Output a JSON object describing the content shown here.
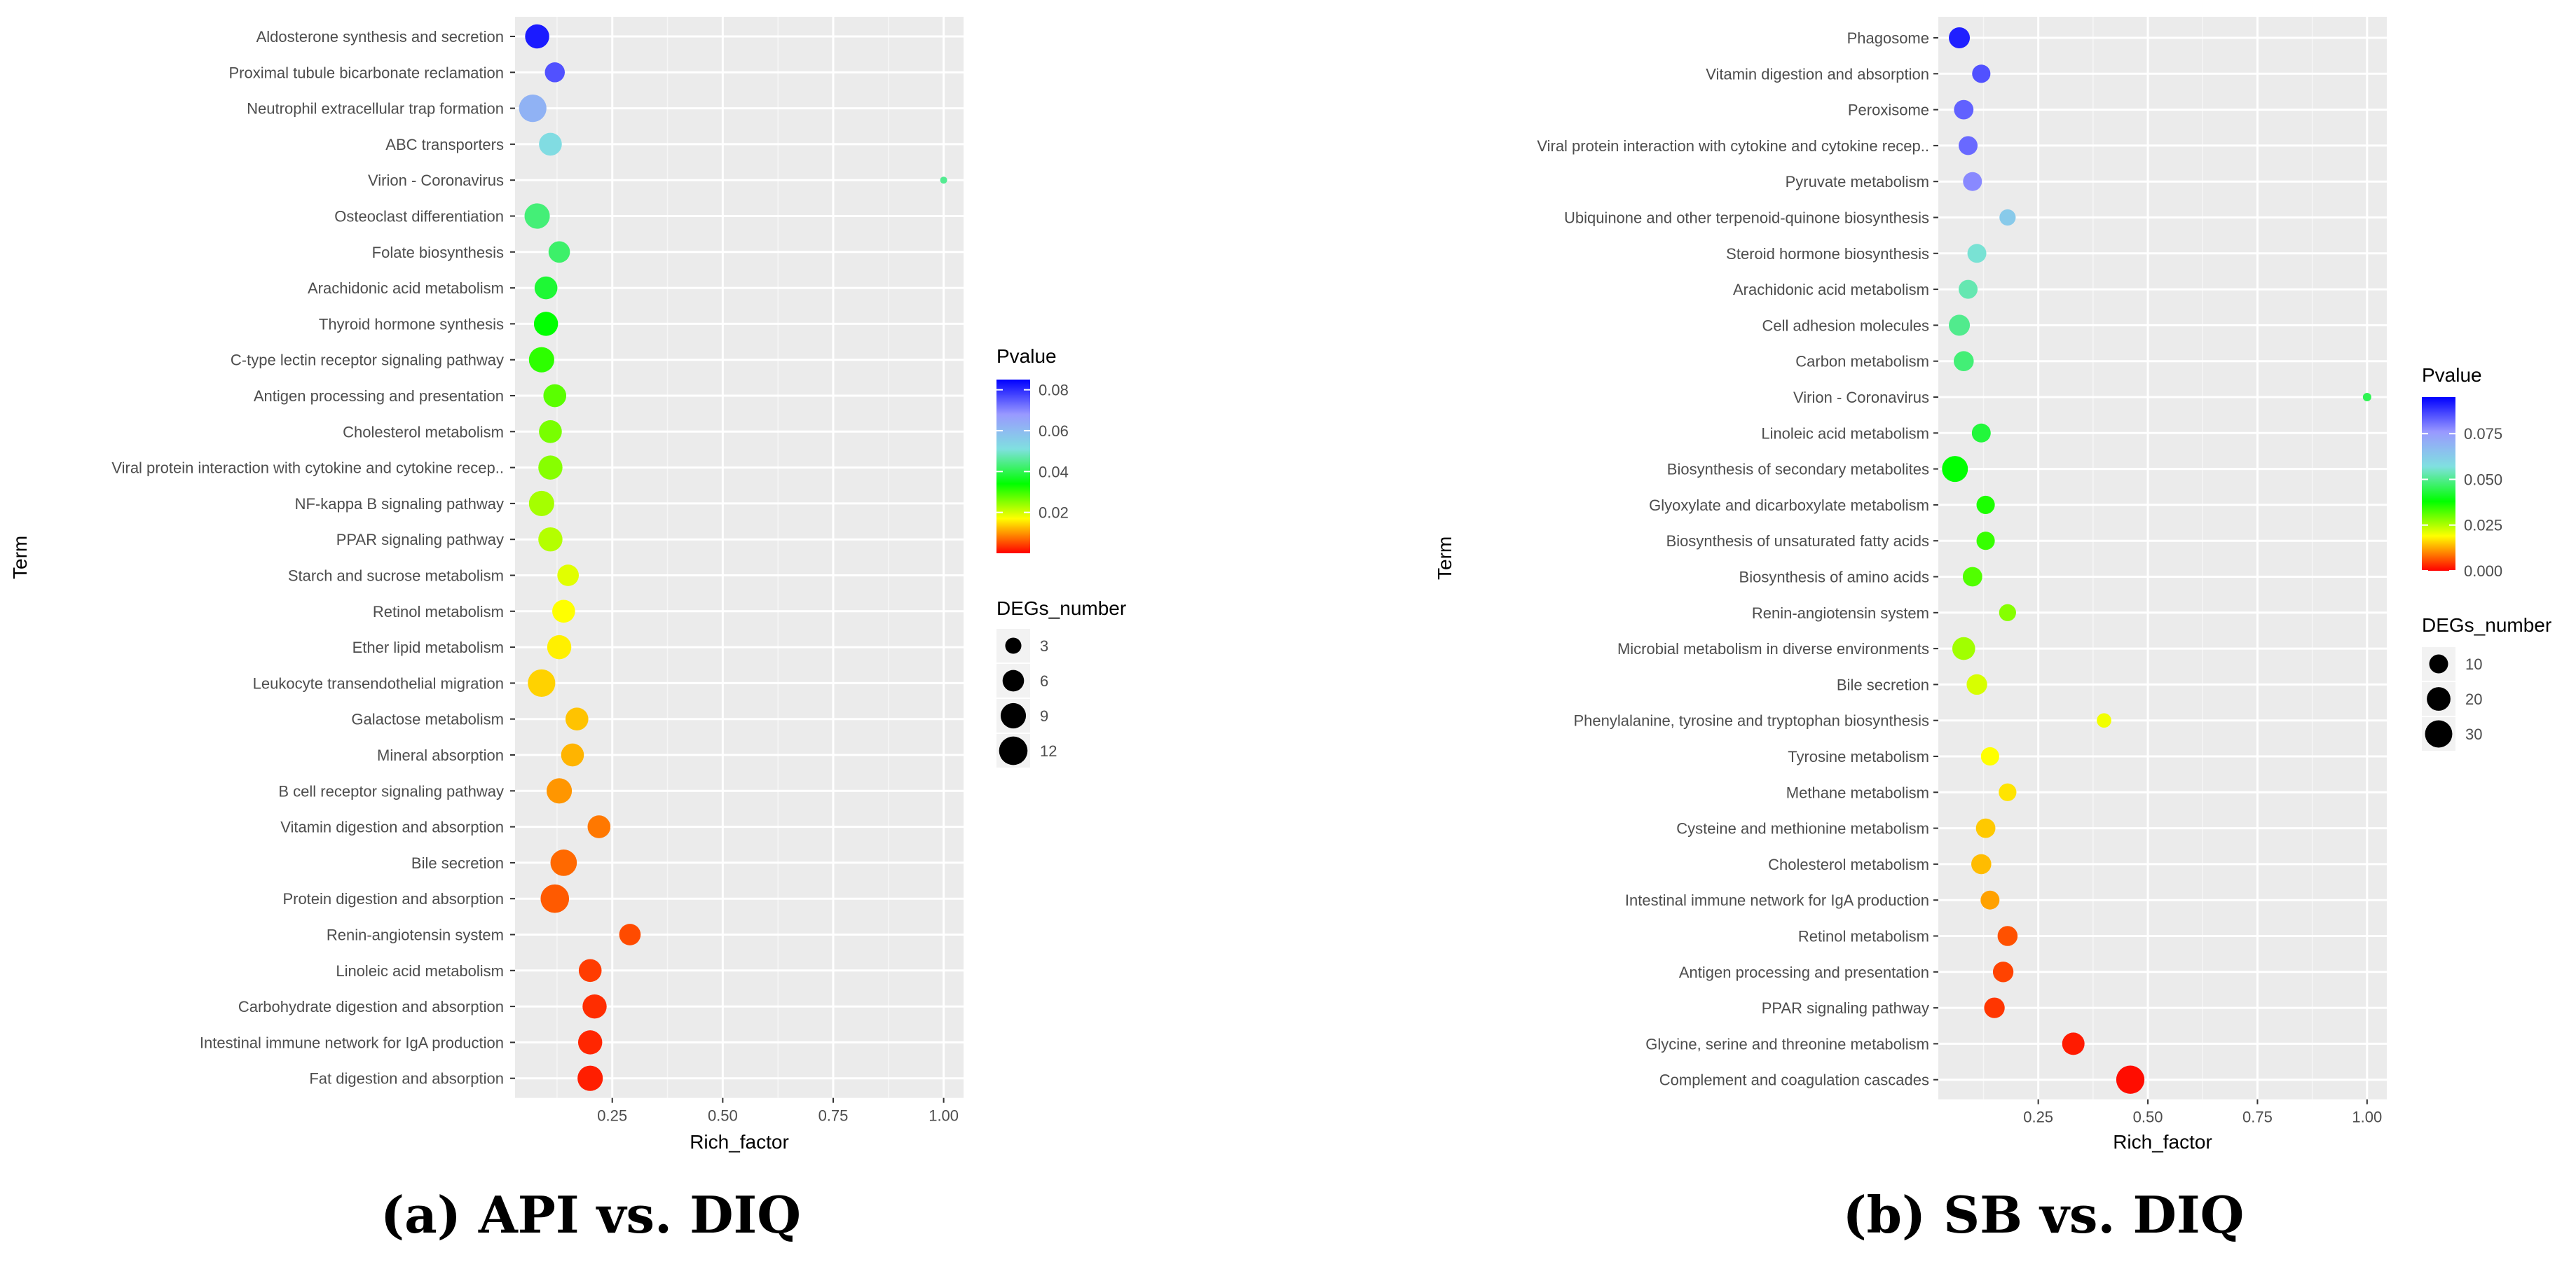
{
  "chart_data": [
    {
      "type": "scatter",
      "caption": "(a) API vs. DIQ",
      "xlabel": "Rich_factor",
      "ylabel": "Term",
      "xlim": [
        0.03,
        1.045
      ],
      "xticks": [
        0.25,
        0.5,
        0.75,
        1.0
      ],
      "xtick_labels": [
        "0.25",
        "0.50",
        "0.75",
        "1.00"
      ],
      "color_legend": {
        "title": "Pvalue",
        "range": [
          0.0,
          0.085
        ],
        "ticks": [
          0.08,
          0.06,
          0.04,
          0.02
        ],
        "tick_labels": [
          "0.08",
          "0.06",
          "0.04",
          "0.02"
        ]
      },
      "size_legend": {
        "title": "DEGs_number",
        "values": [
          3,
          6,
          9,
          12
        ],
        "labels": [
          "3",
          "6",
          "9",
          "12"
        ],
        "range": [
          1,
          13
        ]
      },
      "points": [
        {
          "term": "Aldosterone synthesis and secretion",
          "x": 0.08,
          "p": 0.082,
          "n": 8
        },
        {
          "term": "Proximal tubule bicarbonate reclamation",
          "x": 0.12,
          "p": 0.076,
          "n": 5
        },
        {
          "term": "Neutrophil extracellular trap formation",
          "x": 0.07,
          "p": 0.062,
          "n": 11
        },
        {
          "term": "ABC transporters",
          "x": 0.11,
          "p": 0.052,
          "n": 7
        },
        {
          "term": "Virion - Coronavirus",
          "x": 1.0,
          "p": 0.045,
          "n": 1
        },
        {
          "term": "Osteoclast differentiation",
          "x": 0.08,
          "p": 0.043,
          "n": 9
        },
        {
          "term": "Folate biosynthesis",
          "x": 0.13,
          "p": 0.042,
          "n": 6
        },
        {
          "term": "Arachidonic acid metabolism",
          "x": 0.1,
          "p": 0.038,
          "n": 7
        },
        {
          "term": "Thyroid hormone synthesis",
          "x": 0.1,
          "p": 0.034,
          "n": 8
        },
        {
          "term": "C-type lectin receptor signaling pathway",
          "x": 0.09,
          "p": 0.031,
          "n": 9
        },
        {
          "term": "Antigen processing and presentation",
          "x": 0.12,
          "p": 0.028,
          "n": 7
        },
        {
          "term": "Cholesterol metabolism",
          "x": 0.11,
          "p": 0.026,
          "n": 7
        },
        {
          "term": "Viral protein interaction with cytokine and cytokine recep..",
          "x": 0.11,
          "p": 0.025,
          "n": 8
        },
        {
          "term": "NF-kappa B signaling pathway",
          "x": 0.09,
          "p": 0.023,
          "n": 9
        },
        {
          "term": "PPAR signaling pathway",
          "x": 0.11,
          "p": 0.022,
          "n": 8
        },
        {
          "term": "Starch and sucrose metabolism",
          "x": 0.15,
          "p": 0.019,
          "n": 6
        },
        {
          "term": "Retinol metabolism",
          "x": 0.14,
          "p": 0.017,
          "n": 7
        },
        {
          "term": "Ether lipid metabolism",
          "x": 0.13,
          "p": 0.016,
          "n": 8
        },
        {
          "term": "Leukocyte transendothelial migration",
          "x": 0.09,
          "p": 0.014,
          "n": 11
        },
        {
          "term": "Galactose metabolism",
          "x": 0.17,
          "p": 0.013,
          "n": 7
        },
        {
          "term": "Mineral absorption",
          "x": 0.16,
          "p": 0.012,
          "n": 7
        },
        {
          "term": "B cell receptor signaling pathway",
          "x": 0.13,
          "p": 0.01,
          "n": 9
        },
        {
          "term": "Vitamin digestion and absorption",
          "x": 0.22,
          "p": 0.008,
          "n": 7
        },
        {
          "term": "Bile secretion",
          "x": 0.14,
          "p": 0.007,
          "n": 10
        },
        {
          "term": "Protein digestion and absorption",
          "x": 0.12,
          "p": 0.006,
          "n": 12
        },
        {
          "term": "Renin-angiotensin system",
          "x": 0.29,
          "p": 0.005,
          "n": 6
        },
        {
          "term": "Linoleic acid metabolism",
          "x": 0.2,
          "p": 0.004,
          "n": 7
        },
        {
          "term": "Carbohydrate digestion and absorption",
          "x": 0.21,
          "p": 0.003,
          "n": 8
        },
        {
          "term": "Intestinal immune network for IgA production",
          "x": 0.2,
          "p": 0.0025,
          "n": 8
        },
        {
          "term": "Fat digestion and absorption",
          "x": 0.2,
          "p": 0.002,
          "n": 9
        }
      ]
    },
    {
      "type": "scatter",
      "caption": "(b) SB vs. DIQ",
      "xlabel": "Rich_factor",
      "ylabel": "Term",
      "xlim": [
        0.022,
        1.045
      ],
      "xticks": [
        0.25,
        0.5,
        0.75,
        1.0
      ],
      "xtick_labels": [
        "0.25",
        "0.50",
        "0.75",
        "1.00"
      ],
      "color_legend": {
        "title": "Pvalue",
        "range": [
          0.0,
          0.095
        ],
        "ticks": [
          0.075,
          0.05,
          0.025,
          0.0
        ],
        "tick_labels": [
          "0.075",
          "0.050",
          "0.025",
          "0.000"
        ]
      },
      "size_legend": {
        "title": "DEGs_number",
        "values": [
          10,
          20,
          30
        ],
        "labels": [
          "10",
          "20",
          "30"
        ],
        "range": [
          1,
          37
        ]
      },
      "points": [
        {
          "term": "Phagosome",
          "x": 0.07,
          "p": 0.091,
          "n": 14
        },
        {
          "term": "Vitamin digestion and absorption",
          "x": 0.12,
          "p": 0.085,
          "n": 9
        },
        {
          "term": "Peroxisome",
          "x": 0.08,
          "p": 0.083,
          "n": 11
        },
        {
          "term": "Viral protein interaction with cytokine and cytokine recep..",
          "x": 0.09,
          "p": 0.082,
          "n": 10
        },
        {
          "term": "Pyruvate metabolism",
          "x": 0.1,
          "p": 0.078,
          "n": 10
        },
        {
          "term": "Ubiquinone and other terpenoid-quinone biosynthesis",
          "x": 0.18,
          "p": 0.063,
          "n": 6
        },
        {
          "term": "Steroid hormone biosynthesis",
          "x": 0.11,
          "p": 0.056,
          "n": 10
        },
        {
          "term": "Arachidonic acid metabolism",
          "x": 0.09,
          "p": 0.053,
          "n": 10
        },
        {
          "term": "Cell adhesion molecules",
          "x": 0.07,
          "p": 0.05,
          "n": 14
        },
        {
          "term": "Carbon metabolism",
          "x": 0.08,
          "p": 0.048,
          "n": 12
        },
        {
          "term": "Virion - Coronavirus",
          "x": 1.0,
          "p": 0.045,
          "n": 1
        },
        {
          "term": "Linoleic acid metabolism",
          "x": 0.12,
          "p": 0.043,
          "n": 10
        },
        {
          "term": "Biosynthesis of secondary metabolites",
          "x": 0.06,
          "p": 0.038,
          "n": 26
        },
        {
          "term": "Glyoxylate and dicarboxylate metabolism",
          "x": 0.13,
          "p": 0.036,
          "n": 9
        },
        {
          "term": "Biosynthesis of unsaturated fatty acids",
          "x": 0.13,
          "p": 0.034,
          "n": 9
        },
        {
          "term": "Biosynthesis of amino acids",
          "x": 0.1,
          "p": 0.032,
          "n": 11
        },
        {
          "term": "Renin-angiotensin system",
          "x": 0.18,
          "p": 0.028,
          "n": 7
        },
        {
          "term": "Microbial metabolism in diverse environments",
          "x": 0.08,
          "p": 0.026,
          "n": 18
        },
        {
          "term": "Bile secretion",
          "x": 0.11,
          "p": 0.022,
          "n": 13
        },
        {
          "term": "Phenylalanine, tyrosine and tryptophan biosynthesis",
          "x": 0.4,
          "p": 0.02,
          "n": 4
        },
        {
          "term": "Tyrosine metabolism",
          "x": 0.14,
          "p": 0.019,
          "n": 9
        },
        {
          "term": "Methane metabolism",
          "x": 0.18,
          "p": 0.017,
          "n": 8
        },
        {
          "term": "Cysteine and methionine metabolism",
          "x": 0.13,
          "p": 0.015,
          "n": 11
        },
        {
          "term": "Cholesterol metabolism",
          "x": 0.12,
          "p": 0.014,
          "n": 12
        },
        {
          "term": "Intestinal immune network for IgA production",
          "x": 0.14,
          "p": 0.012,
          "n": 10
        },
        {
          "term": "Retinol metabolism",
          "x": 0.18,
          "p": 0.006,
          "n": 12
        },
        {
          "term": "Antigen processing and presentation",
          "x": 0.17,
          "p": 0.005,
          "n": 13
        },
        {
          "term": "PPAR signaling pathway",
          "x": 0.15,
          "p": 0.004,
          "n": 13
        },
        {
          "term": "Glycine, serine and threonine metabolism",
          "x": 0.33,
          "p": 0.002,
          "n": 17
        },
        {
          "term": "Complement and coagulation cascades",
          "x": 0.46,
          "p": 0.001,
          "n": 33
        }
      ]
    }
  ],
  "colors": {
    "panel_bg": "#ebebeb",
    "grid": "#ffffff",
    "text": "#4d4d4d",
    "tick": "#333333",
    "gradient": [
      "#ff0000",
      "#ffff00",
      "#00ff00",
      "#80e0e0",
      "#9999ff",
      "#0000ff"
    ]
  }
}
